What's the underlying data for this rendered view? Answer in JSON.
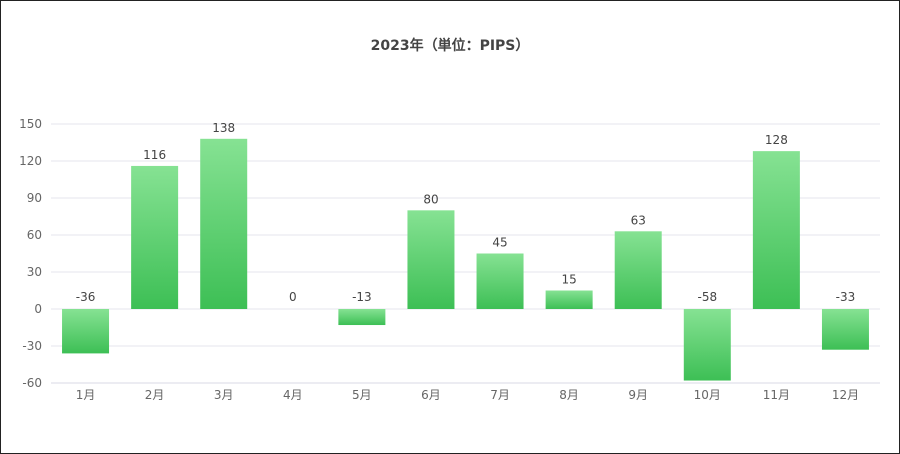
{
  "chart_data": {
    "type": "bar",
    "title": "2023年（単位：PIPS）",
    "categories": [
      "1月",
      "2月",
      "3月",
      "4月",
      "5月",
      "6月",
      "7月",
      "8月",
      "9月",
      "10月",
      "11月",
      "12月"
    ],
    "values": [
      -36,
      116,
      138,
      0,
      -13,
      80,
      45,
      15,
      63,
      -58,
      128,
      -33
    ],
    "y_ticks": [
      150,
      120,
      90,
      60,
      30,
      0,
      -30,
      -60
    ],
    "ylim": [
      -60,
      150
    ],
    "grid": true,
    "legend": "none",
    "colors": {
      "bar_top": "#86e293",
      "bar_bottom": "#3dbf55",
      "grid": "#e6e6ee"
    }
  }
}
